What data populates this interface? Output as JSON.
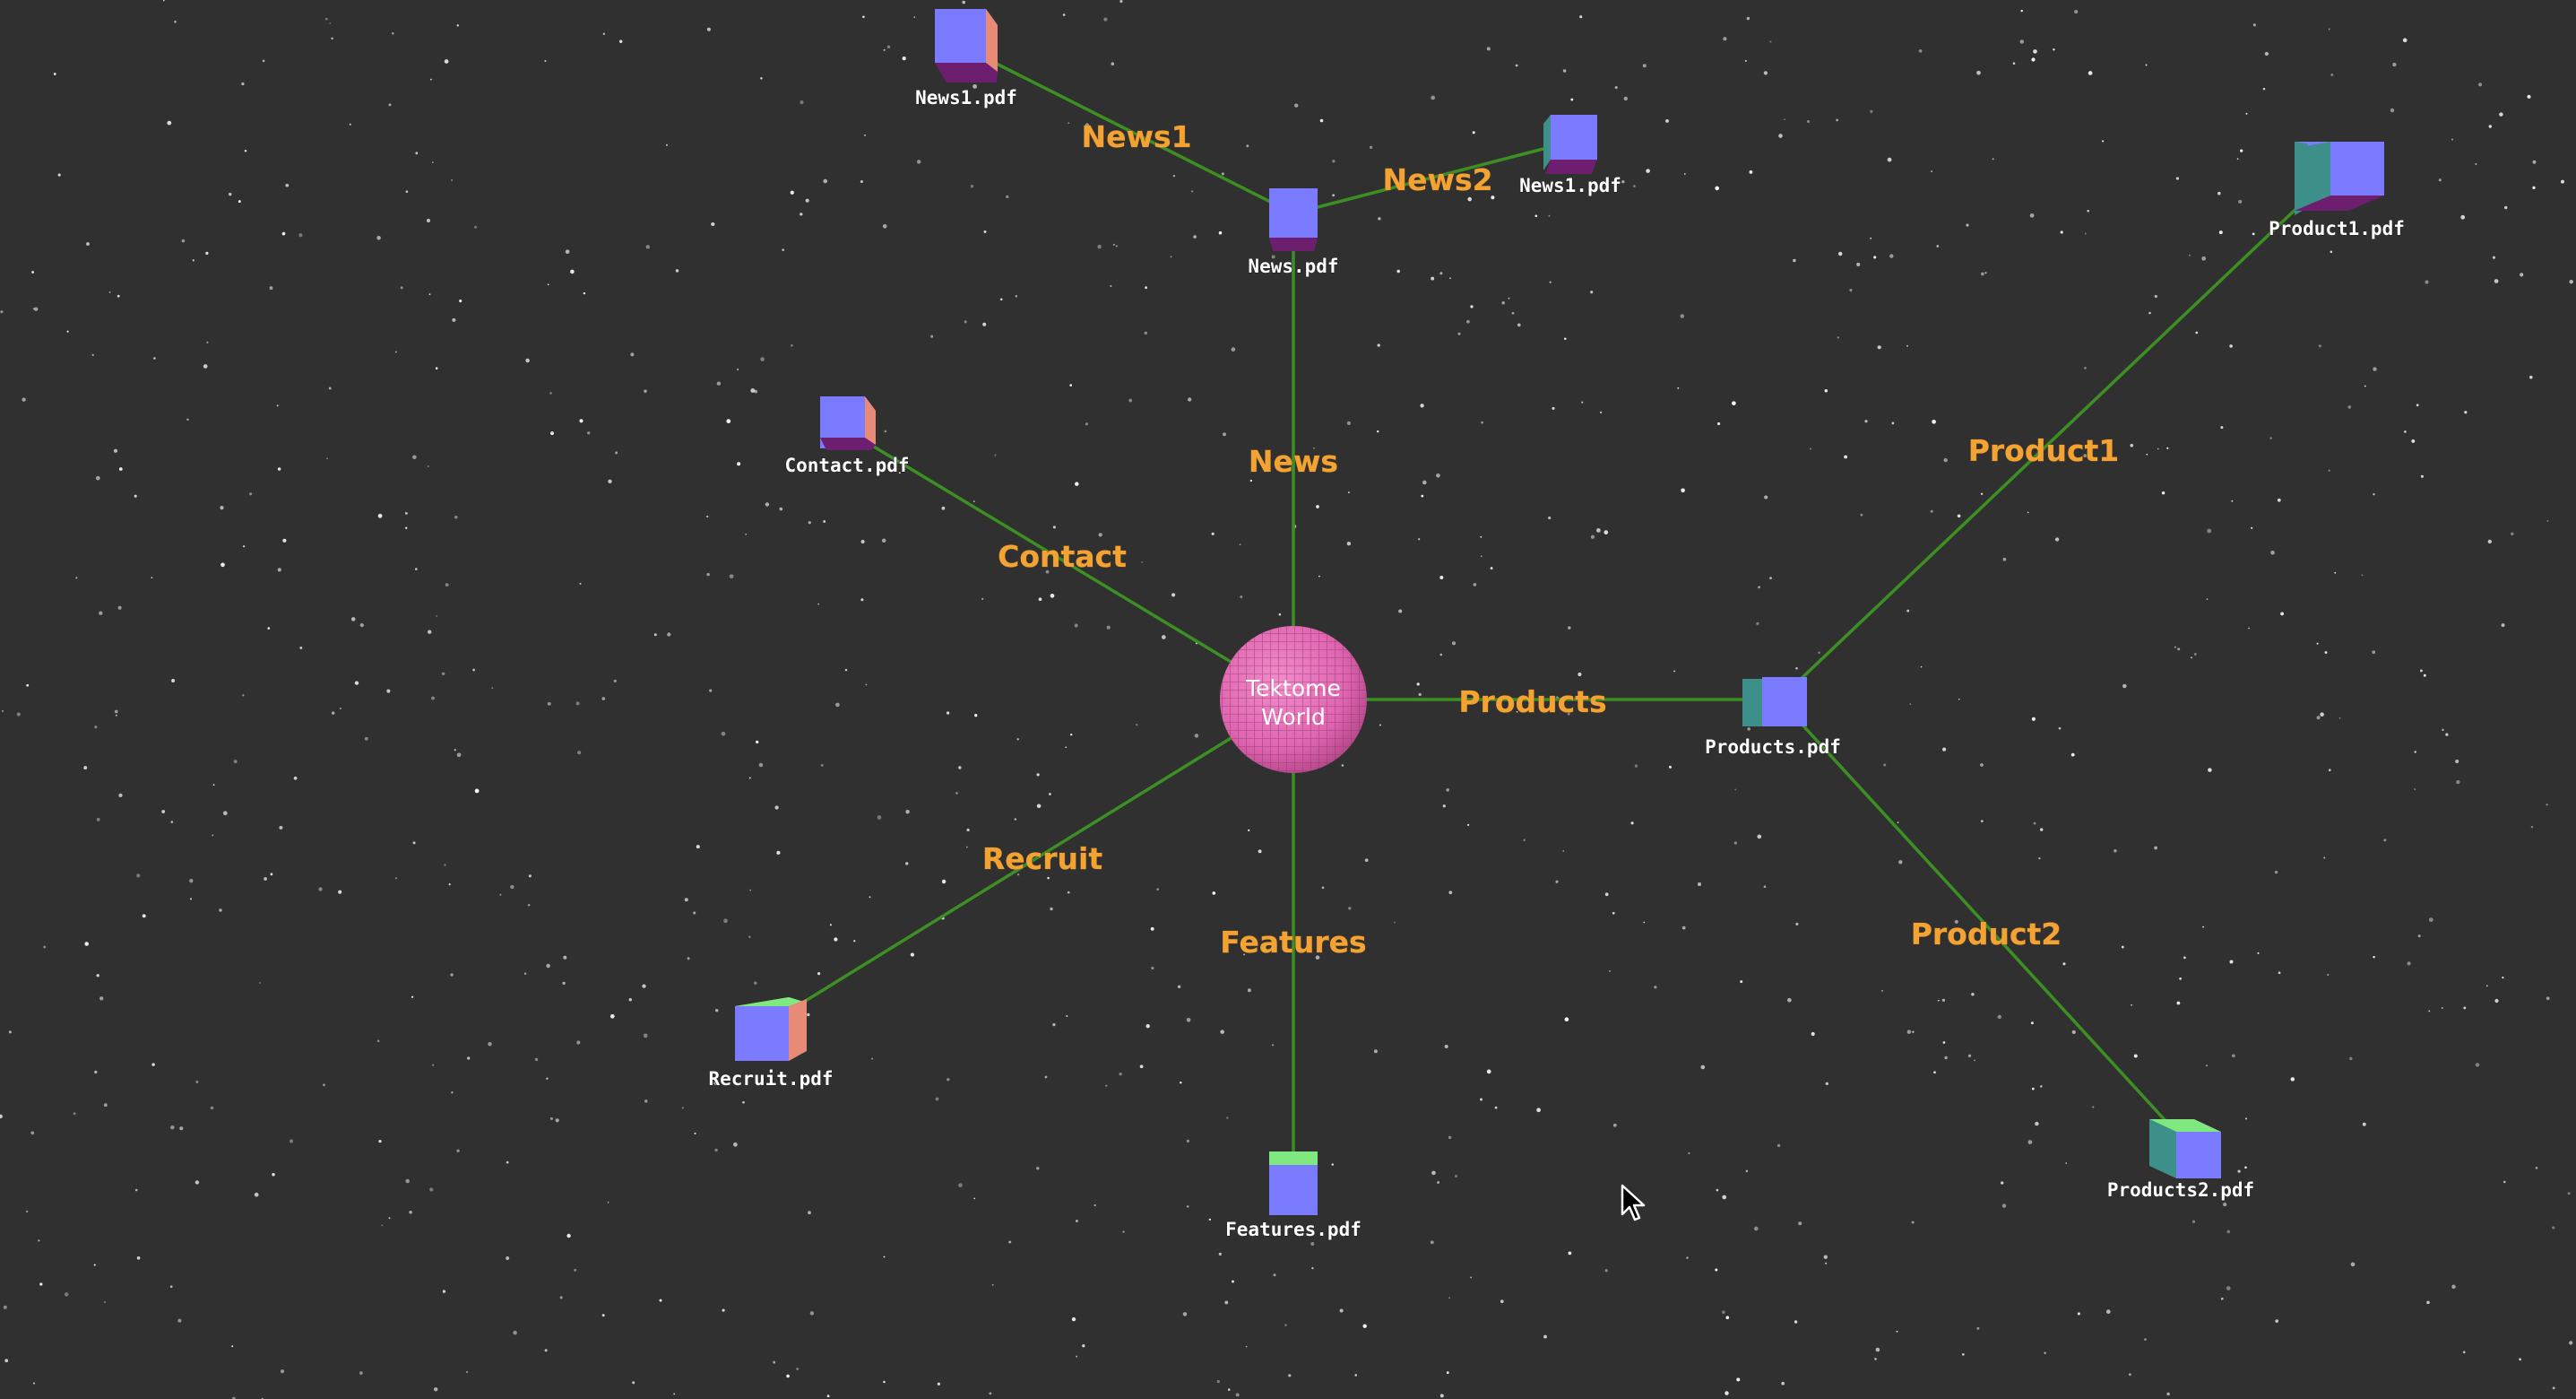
{
  "root": {
    "label_line1": "Tektome",
    "label_line2": "World"
  },
  "edges": {
    "news": "News",
    "contact": "Contact",
    "products": "Products",
    "recruit": "Recruit",
    "features": "Features",
    "news1": "News1",
    "news2": "News2",
    "product1": "Product1",
    "product2": "Product2"
  },
  "nodes": {
    "news": "News.pdf",
    "news1": "News1.pdf",
    "news2": "News1.pdf",
    "contact": "Contact.pdf",
    "products": "Products.pdf",
    "product1": "Product1.pdf",
    "product2": "Products2.pdf",
    "recruit": "Recruit.pdf",
    "features": "Features.pdf"
  },
  "colors": {
    "background": "#303030",
    "edge": "#3c8f22",
    "edge_label": "#f2a334",
    "root_sphere": "#e065b0",
    "cube_front": "#7b7bff"
  }
}
